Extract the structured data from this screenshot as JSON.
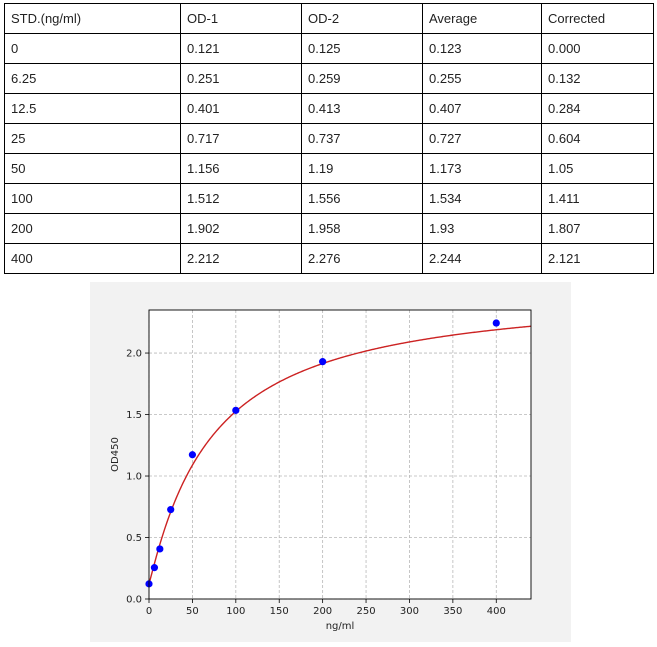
{
  "table": {
    "headers": [
      "STD.(ng/ml)",
      "OD-1",
      "OD-2",
      "Average",
      "Corrected"
    ],
    "rows": [
      [
        "0",
        "0.121",
        "0.125",
        "0.123",
        "0.000"
      ],
      [
        "6.25",
        "0.251",
        "0.259",
        "0.255",
        "0.132"
      ],
      [
        "12.5",
        "0.401",
        "0.413",
        "0.407",
        "0.284"
      ],
      [
        "25",
        "0.717",
        "0.737",
        "0.727",
        "0.604"
      ],
      [
        "50",
        "1.156",
        "1.19",
        "1.173",
        "1.05"
      ],
      [
        "100",
        "1.512",
        "1.556",
        "1.534",
        "1.411"
      ],
      [
        "200",
        "1.902",
        "1.958",
        "1.93",
        "1.807"
      ],
      [
        "400",
        "2.212",
        "2.276",
        "2.244",
        "2.121"
      ]
    ]
  },
  "chart_data": {
    "type": "scatter",
    "title": "",
    "xlabel": "ng/ml",
    "ylabel": "OD450",
    "xlim": [
      0,
      440
    ],
    "ylim": [
      0,
      2.35
    ],
    "xticks": [
      0,
      50,
      100,
      150,
      200,
      250,
      300,
      350,
      400
    ],
    "xtick_labels": [
      "0",
      "50",
      "100",
      "150",
      "200",
      "250",
      "300",
      "350",
      "400"
    ],
    "yticks": [
      0,
      0.5,
      1.0,
      1.5,
      2.0
    ],
    "ytick_labels": [
      "0.0",
      "0.5",
      "1.0",
      "1.5",
      "2.0"
    ],
    "grid": true,
    "series": [
      {
        "x": [
          0,
          6.25,
          12.5,
          25,
          50,
          100,
          200,
          400
        ],
        "y": [
          0.123,
          0.255,
          0.407,
          0.727,
          1.173,
          1.534,
          1.93,
          2.244
        ],
        "color": "#0000ff"
      }
    ],
    "fit_curve": {
      "color": "#cc2222",
      "type": "4PL",
      "params": {
        "A": 0.123,
        "B": 1.06,
        "C": 73.0,
        "D": 2.53
      }
    }
  }
}
